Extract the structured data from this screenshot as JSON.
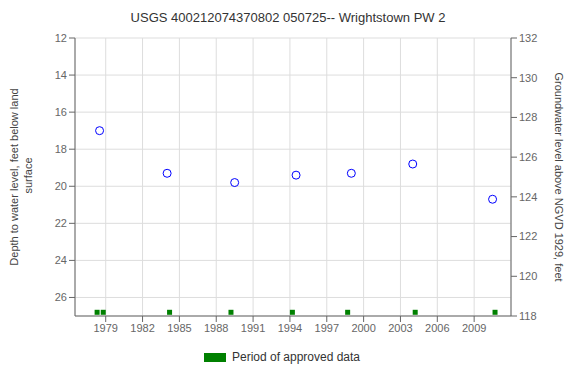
{
  "chart_data": {
    "type": "scatter",
    "title": "USGS 400212074370802 050725-- Wrightstown PW 2",
    "ylabel": "Depth to water level, feet below land\n surface",
    "y2label": "Groundwater level above NGVD 1929, feet",
    "series": [
      {
        "color": "#0000ff",
        "marker": "circle",
        "x": [
          1978.5,
          1984.0,
          1989.5,
          1994.5,
          1999.0,
          2004.0,
          2010.5
        ],
        "values": [
          17.0,
          19.3,
          19.8,
          19.4,
          19.3,
          18.8,
          20.7
        ]
      },
      {
        "name": "Period of approved data",
        "color": "#008000",
        "marker": "square",
        "x": [
          1978.3,
          1978.8,
          1984.2,
          1989.2,
          1994.2,
          1998.7,
          2004.2,
          2010.7
        ],
        "values": [
          26.8,
          26.8,
          26.8,
          26.8,
          26.8,
          26.8,
          26.8,
          26.8
        ]
      }
    ],
    "xlim": [
      1976.5,
      2012
    ],
    "xticks": [
      1979,
      1982,
      1985,
      1988,
      1991,
      1994,
      1997,
      2000,
      2003,
      2006,
      2009
    ],
    "ylim": [
      27,
      12
    ],
    "yticks": [
      12,
      14,
      16,
      18,
      20,
      22,
      24,
      26
    ],
    "y2lim": [
      118,
      132
    ],
    "y2ticks": [
      132,
      130,
      128,
      126,
      124,
      122,
      120,
      118
    ],
    "grid": true
  }
}
